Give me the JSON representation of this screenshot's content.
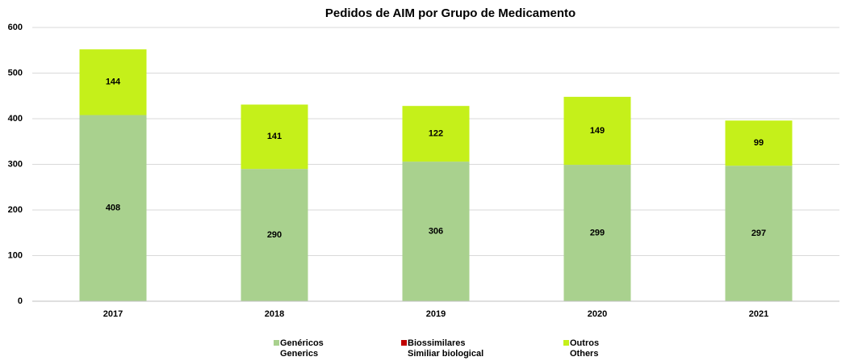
{
  "chart_data": {
    "type": "stacked_bar",
    "title": "Pedidos de AIM por Grupo de Medicamento",
    "categories": [
      "2017",
      "2018",
      "2019",
      "2020",
      "2021"
    ],
    "series": [
      {
        "name": "Genéricos",
        "name_en": "Generics",
        "color": "#a9d18e",
        "values": [
          408,
          290,
          306,
          299,
          297
        ]
      },
      {
        "name": "Biossimilares",
        "name_en": "Similiar biological",
        "color": "#c00000",
        "values": [
          0,
          0,
          0,
          0,
          0
        ]
      },
      {
        "name": "Outros",
        "name_en": "Others",
        "color": "#c5f01a",
        "values": [
          144,
          141,
          122,
          149,
          99
        ]
      }
    ],
    "ylim": [
      0,
      600
    ],
    "yticks": [
      0,
      100,
      200,
      300,
      400,
      500,
      600
    ],
    "grid": true,
    "legend": "bottom"
  }
}
